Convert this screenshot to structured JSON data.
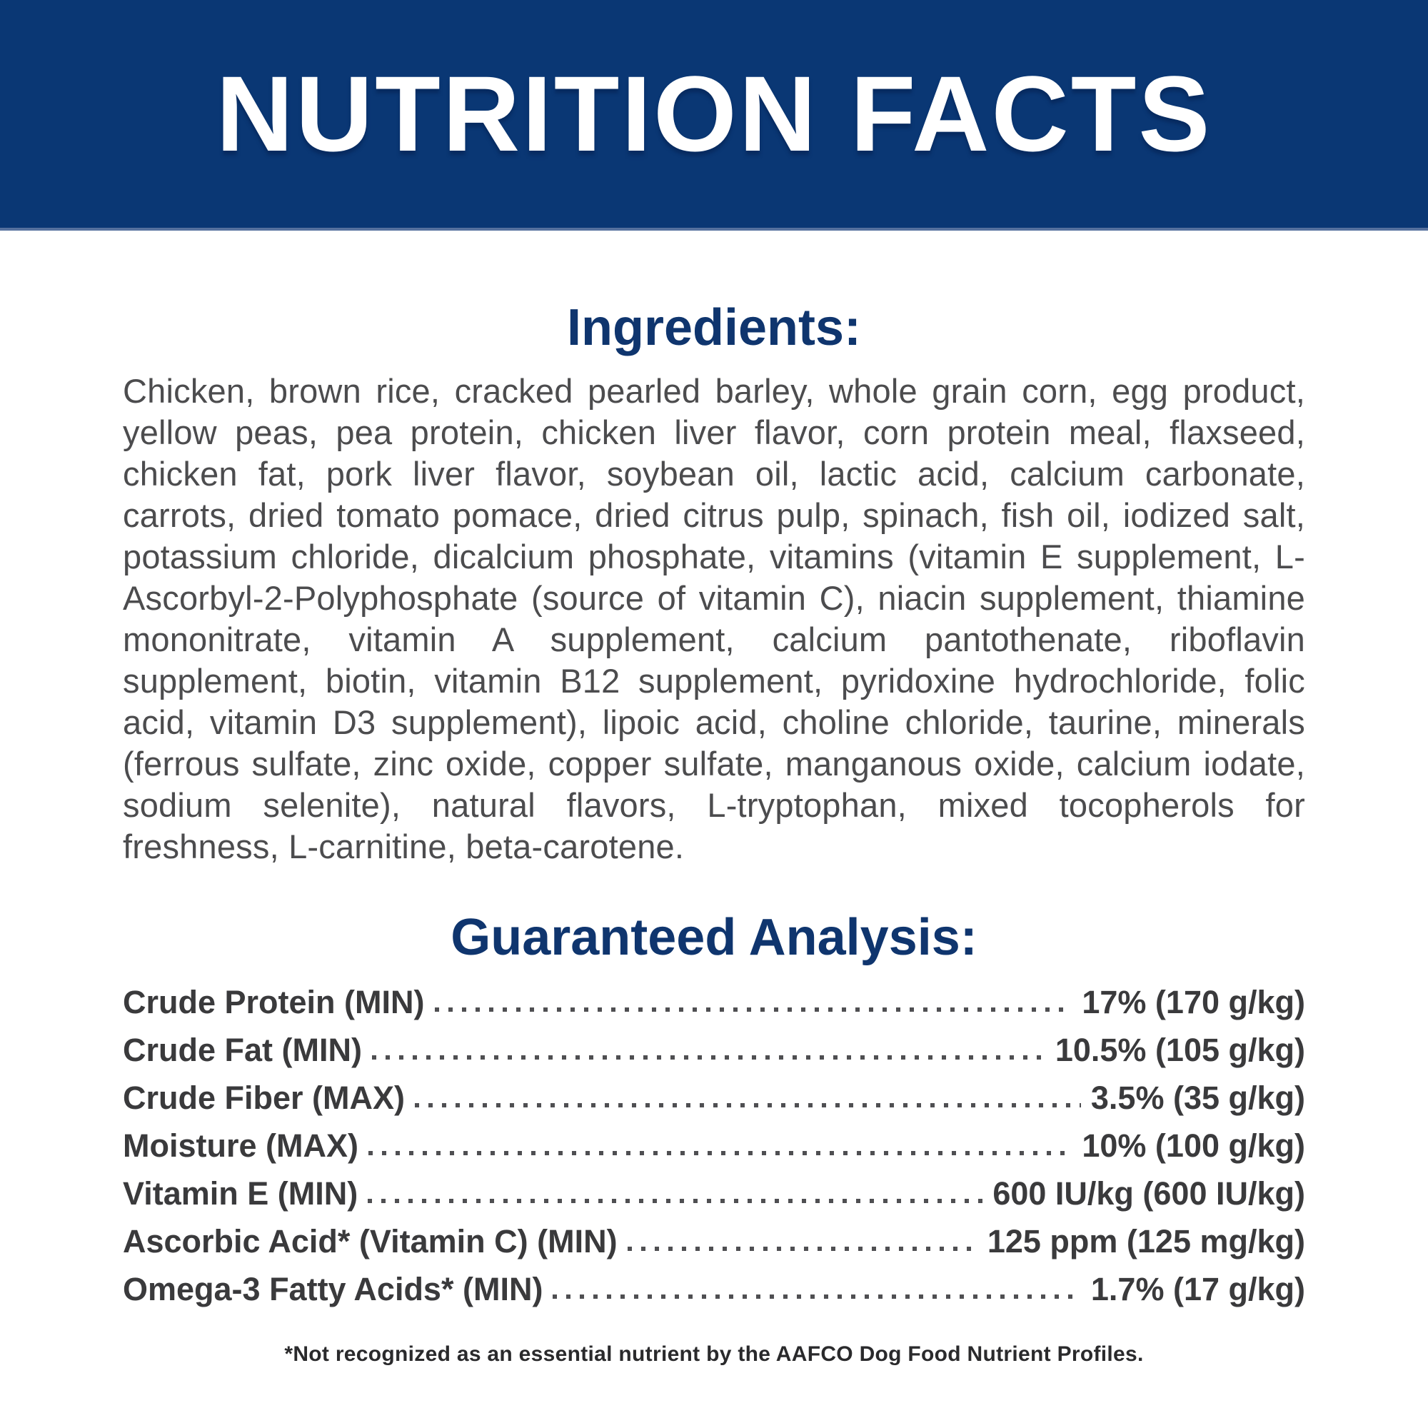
{
  "banner": {
    "title": "NUTRITION FACTS"
  },
  "ingredients": {
    "heading": "Ingredients:",
    "text": "Chicken, brown rice, cracked pearled barley, whole grain corn, egg product, yellow peas, pea protein, chicken liver flavor, corn protein meal, flaxseed, chicken fat, pork liver flavor, soybean oil, lactic acid, calcium carbonate, carrots, dried tomato pomace, dried citrus pulp, spinach, fish oil, iodized salt, potassium chloride, dicalcium phosphate, vitamins (vitamin E supplement, L-Ascorbyl-2-Polyphosphate (source of vitamin C), niacin supplement, thiamine mononitrate, vitamin A supplement, calcium pantothenate, riboflavin supplement, biotin, vitamin B12 supplement, pyridoxine hydrochloride, folic acid, vitamin D3 supplement), lipoic acid, choline chloride, taurine, minerals (ferrous sulfate, zinc oxide, copper sulfate, manganous oxide, calcium iodate, sodium selenite), natural flavors, L-tryptophan, mixed tocopherols for freshness, L-carnitine, beta-carotene."
  },
  "guaranteed_analysis": {
    "heading": "Guaranteed Analysis:",
    "rows": [
      {
        "label": "Crude Protein (MIN)",
        "value": "17% (170 g/kg)"
      },
      {
        "label": "Crude Fat (MIN)",
        "value": "10.5% (105 g/kg)"
      },
      {
        "label": "Crude Fiber (MAX)",
        "value": "3.5% (35 g/kg)"
      },
      {
        "label": "Moisture (MAX)",
        "value": "10% (100 g/kg)"
      },
      {
        "label": "Vitamin E (MIN)",
        "value": "600 IU/kg (600 IU/kg)"
      },
      {
        "label": "Ascorbic Acid* (Vitamin C) (MIN)",
        "value": "125 ppm (125 mg/kg)"
      },
      {
        "label": "Omega-3 Fatty Acids* (MIN)",
        "value": "1.7% (17 g/kg)"
      }
    ]
  },
  "footnote": "*Not recognized as an essential nutrient by the AAFCO Dog Food Nutrient Profiles.",
  "colors": {
    "banner_background": "#0a3774",
    "banner_text": "#ffffff",
    "heading_text": "#0f356e",
    "body_text": "#4c4c4e",
    "analysis_text": "#3a3a3c",
    "footnote_text": "#2a2a2c"
  }
}
